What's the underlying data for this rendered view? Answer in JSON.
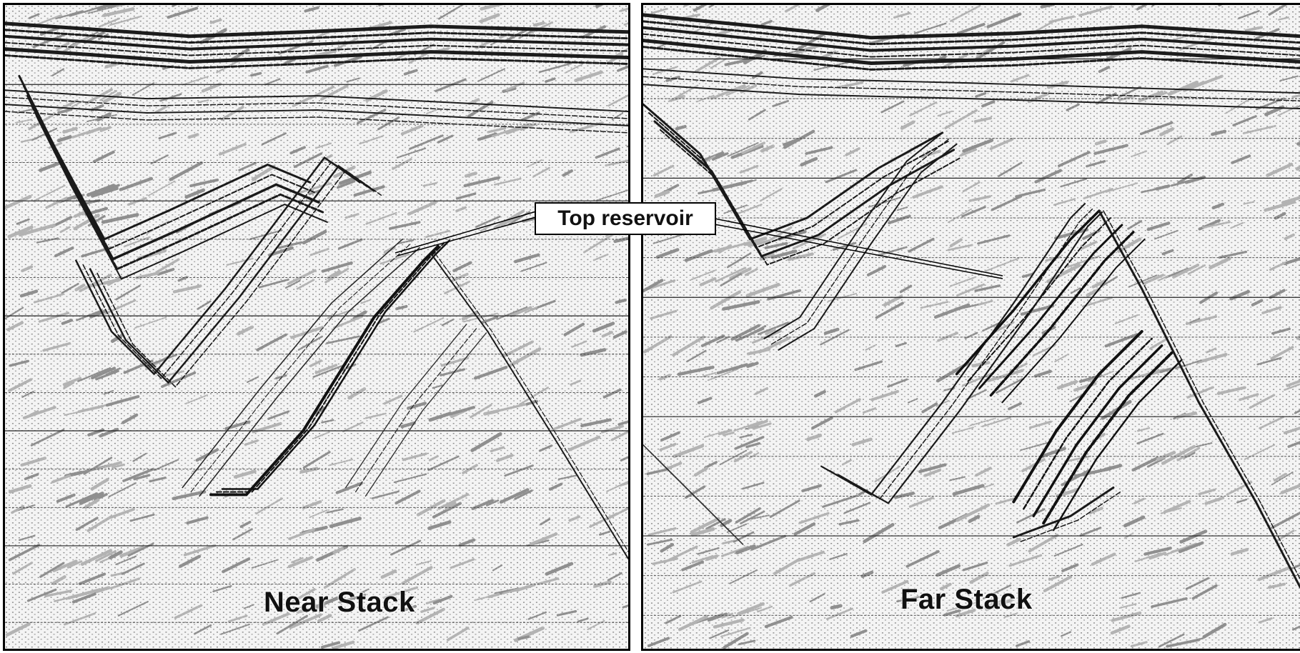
{
  "figure": {
    "left_panel": {
      "label": "Near Stack"
    },
    "right_panel": {
      "label": "Far Stack"
    },
    "callout": {
      "label": "Top reservoir"
    },
    "colors": {
      "ink": "#111111",
      "background": "#ffffff",
      "noise": "#9a9a9a"
    }
  }
}
